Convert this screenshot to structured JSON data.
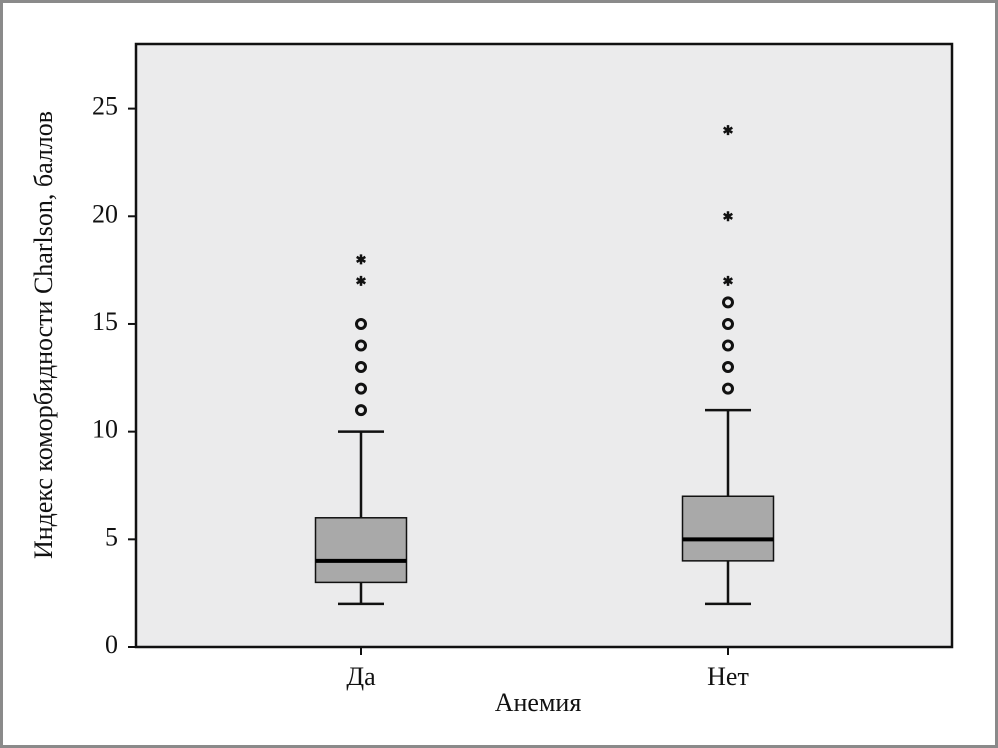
{
  "chart_data": {
    "type": "box",
    "x_label": "Анемия",
    "y_label": "Индекс коморбидности Charlson, баллов",
    "categories": [
      "Да",
      "Нет"
    ],
    "boxes": [
      {
        "min": 2,
        "q1": 3,
        "median": 4,
        "q3": 6,
        "max": 10,
        "outliers": [
          11,
          12,
          13,
          14,
          15
        ],
        "extremes": [
          17,
          18
        ]
      },
      {
        "min": 2,
        "q1": 4,
        "median": 5,
        "q3": 7,
        "max": 11,
        "outliers": [
          12,
          13,
          14,
          15,
          16
        ],
        "extremes": [
          17,
          20,
          24
        ]
      }
    ],
    "color": "#a9a9a9",
    "background": "#ebebec",
    "ylim": [
      0,
      28
    ],
    "yticks": [
      0,
      5,
      10,
      15,
      20,
      25
    ]
  }
}
